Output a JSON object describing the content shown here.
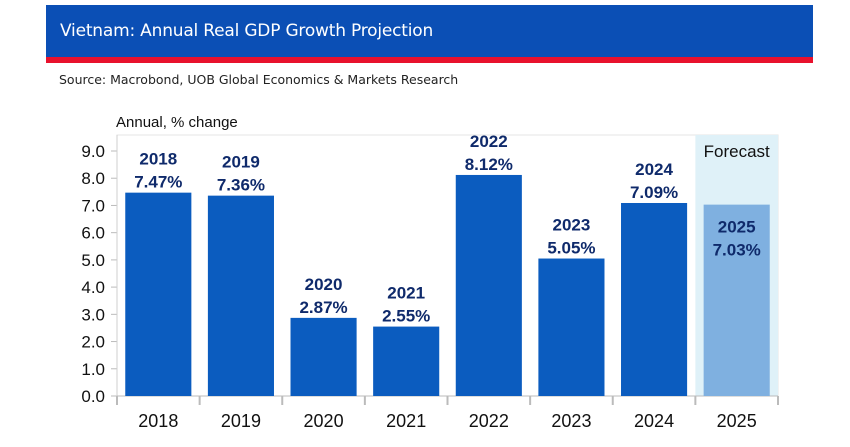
{
  "header": {
    "title": "Vietnam: Annual Real GDP Growth Projection",
    "source": "Source: Macrobond, UOB Global Economics & Markets Research"
  },
  "colors": {
    "header_blue": "#0b4fb5",
    "accent_red": "#e8112d",
    "bar_actual": "#0b5cbf",
    "bar_forecast": "#7fb0e0",
    "forecast_band": "#dff1f8",
    "label_navy": "#0f2a6b"
  },
  "chart_data": {
    "type": "bar",
    "title": "Vietnam: Annual Real GDP Growth Projection",
    "ylabel": "Annual, % change",
    "xlabel": "",
    "categories": [
      "2018",
      "2019",
      "2020",
      "2021",
      "2022",
      "2023",
      "2024",
      "2025"
    ],
    "values": [
      7.47,
      7.36,
      2.87,
      2.55,
      8.12,
      5.05,
      7.09,
      7.03
    ],
    "data_labels": [
      "7.47%",
      "7.36%",
      "2.87%",
      "2.55%",
      "8.12%",
      "5.05%",
      "7.09%",
      "7.03%"
    ],
    "forecast": [
      false,
      false,
      false,
      false,
      false,
      false,
      false,
      true
    ],
    "forecast_label": "Forecast",
    "ylim": [
      0,
      9
    ],
    "yticks": [
      "0.0",
      "1.0",
      "2.0",
      "3.0",
      "4.0",
      "5.0",
      "6.0",
      "7.0",
      "8.0",
      "9.0"
    ],
    "grid": false,
    "legend": "none"
  }
}
